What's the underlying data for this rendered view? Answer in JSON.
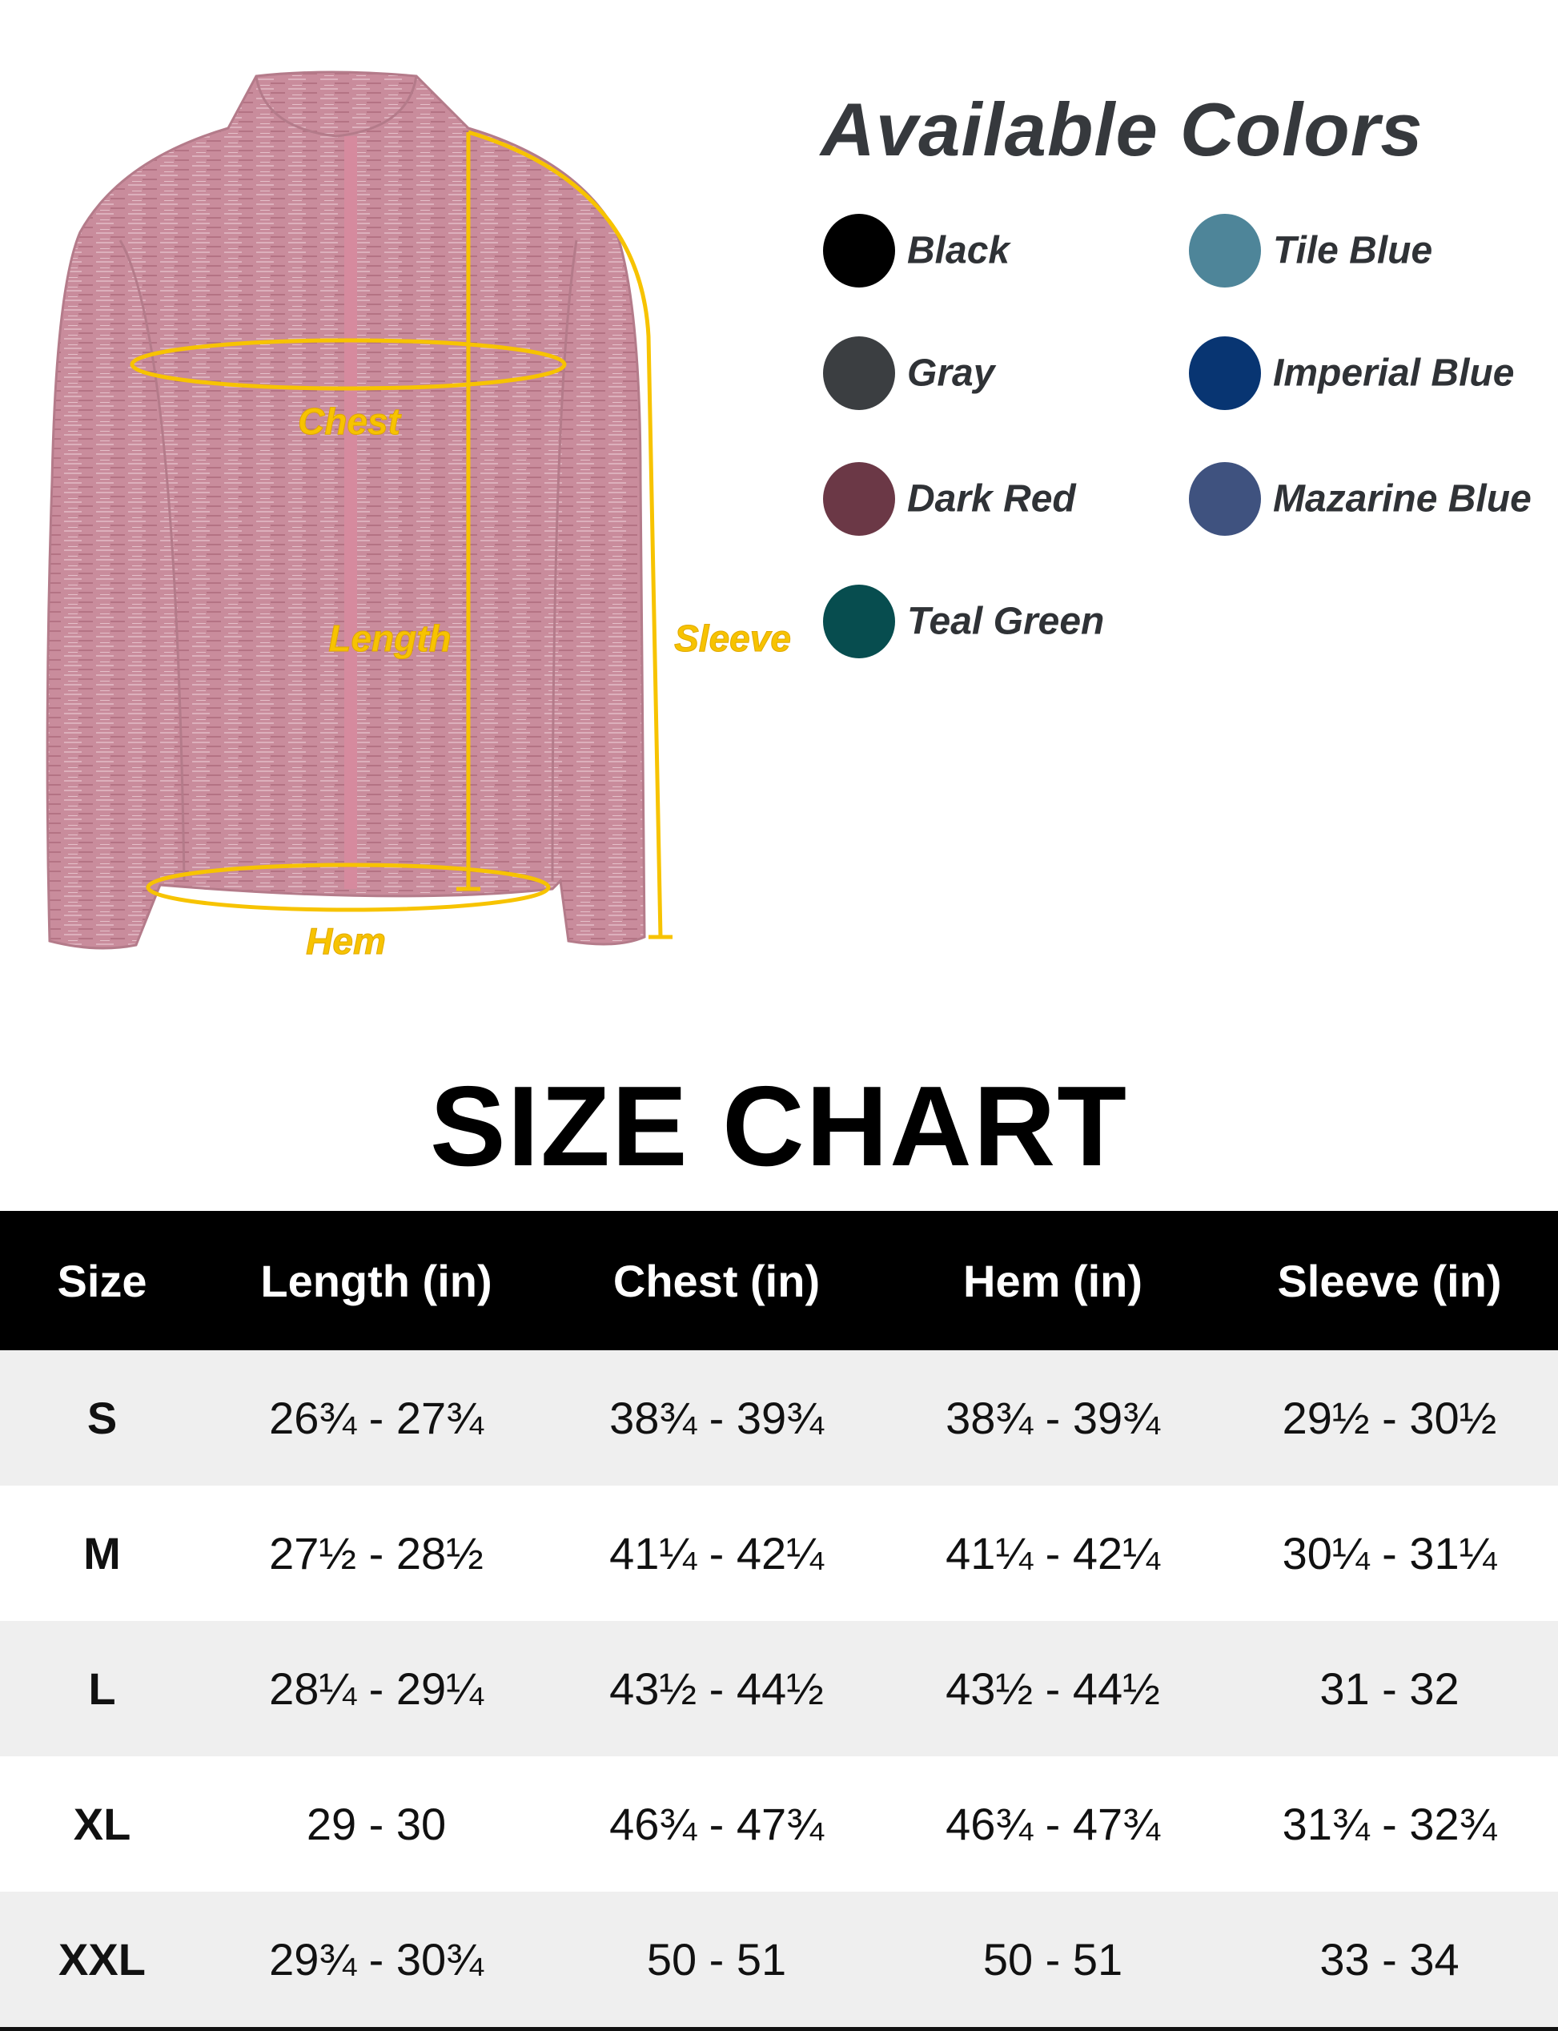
{
  "diagram": {
    "labels": {
      "chest": "Chest",
      "length": "Length",
      "sleeve": "Sleeve",
      "hem": "Hem"
    },
    "jacket_color": "#c98c9c",
    "measure_color": "#f7c300"
  },
  "colors": {
    "title": "Available Colors",
    "items": [
      {
        "name": "Black",
        "hex": "#000000"
      },
      {
        "name": "Gray",
        "hex": "#3b3e41"
      },
      {
        "name": "Dark Red",
        "hex": "#6b3846"
      },
      {
        "name": "Teal Green",
        "hex": "#074d4f"
      },
      {
        "name": "Tile Blue",
        "hex": "#4e8599"
      },
      {
        "name": "Imperial Blue",
        "hex": "#083572"
      },
      {
        "name": "Mazarine Blue",
        "hex": "#3f527f"
      }
    ]
  },
  "size_chart": {
    "title": "SIZE CHART",
    "headers": [
      "Size",
      "Length (in)",
      "Chest (in)",
      "Hem (in)",
      "Sleeve (in)"
    ],
    "rows": [
      [
        "S",
        "26¾ - 27¾",
        "38¾ - 39¾",
        "38¾ - 39¾",
        "29½ - 30½"
      ],
      [
        "M",
        "27½ - 28½",
        "41¼ - 42¼",
        "41¼ - 42¼",
        "30¼ - 31¼"
      ],
      [
        "L",
        "28¼ - 29¼",
        "43½ - 44½",
        "43½ - 44½",
        "31 - 32"
      ],
      [
        "XL",
        "29 - 30",
        "46¾ - 47¾",
        "46¾ - 47¾",
        "31¾ - 32¾"
      ],
      [
        "XXL",
        "29¾ - 30¾",
        "50 - 51",
        "50 - 51",
        "33 - 34"
      ]
    ]
  }
}
